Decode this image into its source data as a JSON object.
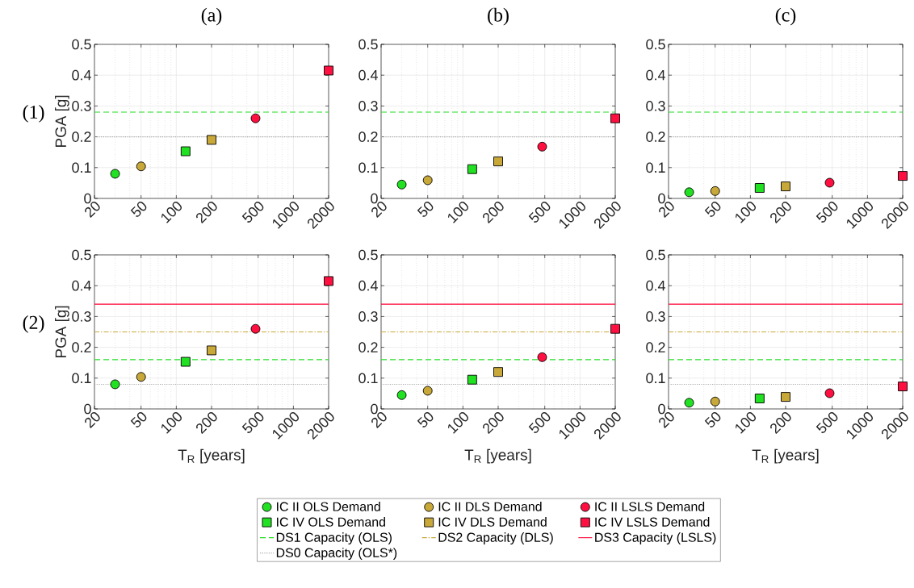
{
  "chart_data": [
    {
      "type": "scatter",
      "title": "(a)",
      "ylabel": "PGA [g]",
      "annotations": [
        "(1)"
      ],
      "log": "x",
      "grid": true,
      "xlim": [
        20,
        2000
      ],
      "ylim": [
        0,
        0.5
      ],
      "xticks": [
        20,
        50,
        100,
        200,
        500,
        1000,
        2000
      ],
      "yticks": [
        0,
        0.1,
        0.2,
        0.3,
        0.4,
        0.5
      ],
      "series": [
        {
          "marker": "circle",
          "color": "#22e022",
          "x": [
            30
          ],
          "values": [
            0.08
          ]
        },
        {
          "marker": "circle",
          "color": "#c9a83a",
          "x": [
            50
          ],
          "values": [
            0.104
          ]
        },
        {
          "marker": "circle",
          "color": "#ff1040",
          "x": [
            475
          ],
          "values": [
            0.26
          ]
        },
        {
          "marker": "square",
          "color": "#22e022",
          "x": [
            120
          ],
          "values": [
            0.153
          ]
        },
        {
          "marker": "square",
          "color": "#c9a83a",
          "x": [
            200
          ],
          "values": [
            0.19
          ]
        },
        {
          "marker": "square",
          "color": "#ff1040",
          "x": [
            2000
          ],
          "values": [
            0.415
          ]
        }
      ],
      "ref_lines": [
        {
          "axis": "y",
          "value": 0.28,
          "color": "#22dd22",
          "line_style": "dashed"
        },
        {
          "axis": "y",
          "value": 0.2,
          "color": "#aaaaaa",
          "line_style": "dotted"
        }
      ]
    },
    {
      "type": "scatter",
      "title": "(b)",
      "log": "x",
      "grid": true,
      "xlim": [
        20,
        2000
      ],
      "ylim": [
        0,
        0.5
      ],
      "xticks": [
        20,
        50,
        100,
        200,
        500,
        1000,
        2000
      ],
      "yticks": [
        0,
        0.1,
        0.2,
        0.3,
        0.4,
        0.5
      ],
      "series": [
        {
          "marker": "circle",
          "color": "#22e022",
          "x": [
            30
          ],
          "values": [
            0.045
          ]
        },
        {
          "marker": "circle",
          "color": "#c9a83a",
          "x": [
            50
          ],
          "values": [
            0.059
          ]
        },
        {
          "marker": "circle",
          "color": "#ff1040",
          "x": [
            475
          ],
          "values": [
            0.168
          ]
        },
        {
          "marker": "square",
          "color": "#22e022",
          "x": [
            120
          ],
          "values": [
            0.095
          ]
        },
        {
          "marker": "square",
          "color": "#c9a83a",
          "x": [
            200
          ],
          "values": [
            0.12
          ]
        },
        {
          "marker": "square",
          "color": "#ff1040",
          "x": [
            2000
          ],
          "values": [
            0.26
          ]
        }
      ],
      "ref_lines": [
        {
          "axis": "y",
          "value": 0.28,
          "color": "#22dd22",
          "line_style": "dashed"
        },
        {
          "axis": "y",
          "value": 0.2,
          "color": "#aaaaaa",
          "line_style": "dotted"
        }
      ]
    },
    {
      "type": "scatter",
      "title": "(c)",
      "log": "x",
      "grid": true,
      "xlim": [
        20,
        2000
      ],
      "ylim": [
        0,
        0.5
      ],
      "xticks": [
        20,
        50,
        100,
        200,
        500,
        1000,
        2000
      ],
      "yticks": [
        0,
        0.1,
        0.2,
        0.3,
        0.4,
        0.5
      ],
      "series": [
        {
          "marker": "circle",
          "color": "#22e022",
          "x": [
            30
          ],
          "values": [
            0.02
          ]
        },
        {
          "marker": "circle",
          "color": "#c9a83a",
          "x": [
            50
          ],
          "values": [
            0.024
          ]
        },
        {
          "marker": "circle",
          "color": "#ff1040",
          "x": [
            475
          ],
          "values": [
            0.051
          ]
        },
        {
          "marker": "square",
          "color": "#22e022",
          "x": [
            120
          ],
          "values": [
            0.034
          ]
        },
        {
          "marker": "square",
          "color": "#c9a83a",
          "x": [
            200
          ],
          "values": [
            0.039
          ]
        },
        {
          "marker": "square",
          "color": "#ff1040",
          "x": [
            2000
          ],
          "values": [
            0.073
          ]
        }
      ],
      "ref_lines": [
        {
          "axis": "y",
          "value": 0.28,
          "color": "#22dd22",
          "line_style": "dashed"
        },
        {
          "axis": "y",
          "value": 0.2,
          "color": "#aaaaaa",
          "line_style": "dotted"
        }
      ]
    },
    {
      "type": "scatter",
      "xlabel": "T$_{R}$ [years]",
      "ylabel": "PGA [g]",
      "annotations": [
        "(2)"
      ],
      "log": "x",
      "grid": true,
      "xlim": [
        20,
        2000
      ],
      "ylim": [
        0,
        0.5
      ],
      "xticks": [
        20,
        50,
        100,
        200,
        500,
        1000,
        2000
      ],
      "yticks": [
        0,
        0.1,
        0.2,
        0.3,
        0.4,
        0.5
      ],
      "series": [
        {
          "marker": "circle",
          "color": "#22e022",
          "x": [
            30
          ],
          "values": [
            0.08
          ]
        },
        {
          "marker": "circle",
          "color": "#c9a83a",
          "x": [
            50
          ],
          "values": [
            0.104
          ]
        },
        {
          "marker": "circle",
          "color": "#ff1040",
          "x": [
            475
          ],
          "values": [
            0.26
          ]
        },
        {
          "marker": "square",
          "color": "#22e022",
          "x": [
            120
          ],
          "values": [
            0.153
          ]
        },
        {
          "marker": "square",
          "color": "#c9a83a",
          "x": [
            200
          ],
          "values": [
            0.19
          ]
        },
        {
          "marker": "square",
          "color": "#ff1040",
          "x": [
            2000
          ],
          "values": [
            0.415
          ]
        }
      ],
      "ref_lines": [
        {
          "axis": "y",
          "value": 0.16,
          "color": "#22dd22",
          "line_style": "dashed"
        },
        {
          "axis": "y",
          "value": 0.25,
          "color": "#c9a83a",
          "line_style": "dashdot"
        },
        {
          "axis": "y",
          "value": 0.34,
          "color": "#ff0033",
          "line_style": "solid"
        },
        {
          "axis": "y",
          "value": 0.08,
          "color": "#aaaaaa",
          "line_style": "dotted"
        }
      ]
    },
    {
      "type": "scatter",
      "xlabel": "T$_{R}$ [years]",
      "log": "x",
      "grid": true,
      "legend": "bottom",
      "xlim": [
        20,
        2000
      ],
      "ylim": [
        0,
        0.5
      ],
      "xticks": [
        20,
        50,
        100,
        200,
        500,
        1000,
        2000
      ],
      "yticks": [
        0,
        0.1,
        0.2,
        0.3,
        0.4,
        0.5
      ],
      "series": [
        {
          "name": "IC II OLS Demand",
          "marker": "circle",
          "color": "#22e022",
          "x": [
            30
          ],
          "values": [
            0.045
          ]
        },
        {
          "name": "IC II DLS Demand",
          "marker": "circle",
          "color": "#c9a83a",
          "x": [
            50
          ],
          "values": [
            0.059
          ]
        },
        {
          "name": "IC II LSLS Demand",
          "marker": "circle",
          "color": "#ff1040",
          "x": [
            475
          ],
          "values": [
            0.168
          ]
        },
        {
          "name": "IC IV OLS Demand",
          "marker": "square",
          "color": "#22e022",
          "x": [
            120
          ],
          "values": [
            0.095
          ]
        },
        {
          "name": "IC IV DLS Demand",
          "marker": "square",
          "color": "#c9a83a",
          "x": [
            200
          ],
          "values": [
            0.12
          ]
        },
        {
          "name": "IC IV LSLS Demand",
          "marker": "square",
          "color": "#ff1040",
          "x": [
            2000
          ],
          "values": [
            0.26
          ]
        }
      ],
      "ref_lines": [
        {
          "axis": "y",
          "value": 0.16,
          "label": "DS1 Capacity (OLS)",
          "color": "#22dd22",
          "line_style": "dashed"
        },
        {
          "axis": "y",
          "value": 0.25,
          "label": "DS2 Capacity (DLS)",
          "color": "#c9a83a",
          "line_style": "dashdot"
        },
        {
          "axis": "y",
          "value": 0.34,
          "label": "DS3 Capacity (LSLS)",
          "color": "#ff0033",
          "line_style": "solid"
        },
        {
          "axis": "y",
          "value": 0.08,
          "label": "DS0 Capacity (OLS*)",
          "color": "#aaaaaa",
          "line_style": "dotted"
        }
      ]
    },
    {
      "type": "scatter",
      "xlabel": "T$_{R}$ [years]",
      "log": "x",
      "grid": true,
      "xlim": [
        20,
        2000
      ],
      "ylim": [
        0,
        0.5
      ],
      "xticks": [
        20,
        50,
        100,
        200,
        500,
        1000,
        2000
      ],
      "yticks": [
        0,
        0.1,
        0.2,
        0.3,
        0.4,
        0.5
      ],
      "series": [
        {
          "marker": "circle",
          "color": "#22e022",
          "x": [
            30
          ],
          "values": [
            0.02
          ]
        },
        {
          "marker": "circle",
          "color": "#c9a83a",
          "x": [
            50
          ],
          "values": [
            0.024
          ]
        },
        {
          "marker": "circle",
          "color": "#ff1040",
          "x": [
            475
          ],
          "values": [
            0.051
          ]
        },
        {
          "marker": "square",
          "color": "#22e022",
          "x": [
            120
          ],
          "values": [
            0.034
          ]
        },
        {
          "marker": "square",
          "color": "#c9a83a",
          "x": [
            200
          ],
          "values": [
            0.039
          ]
        },
        {
          "marker": "square",
          "color": "#ff1040",
          "x": [
            2000
          ],
          "values": [
            0.073
          ]
        }
      ],
      "ref_lines": [
        {
          "axis": "y",
          "value": 0.16,
          "color": "#22dd22",
          "line_style": "dashed"
        },
        {
          "axis": "y",
          "value": 0.25,
          "color": "#c9a83a",
          "line_style": "dashdot"
        },
        {
          "axis": "y",
          "value": 0.34,
          "color": "#ff0033",
          "line_style": "solid"
        },
        {
          "axis": "y",
          "value": 0.08,
          "color": "#aaaaaa",
          "line_style": "dotted"
        }
      ]
    }
  ]
}
